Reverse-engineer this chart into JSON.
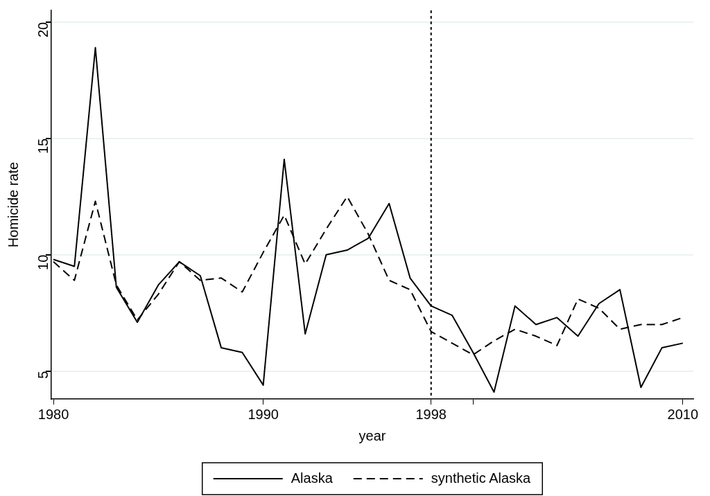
{
  "chart_data": {
    "type": "line",
    "xlabel": "year",
    "ylabel": "Homicide rate",
    "x": [
      1980,
      1981,
      1982,
      1983,
      1984,
      1985,
      1986,
      1987,
      1988,
      1989,
      1990,
      1991,
      1992,
      1993,
      1994,
      1995,
      1996,
      1997,
      1998,
      1999,
      2000,
      2001,
      2002,
      2003,
      2004,
      2005,
      2006,
      2007,
      2008,
      2009,
      2010
    ],
    "series": [
      {
        "name": "Alaska",
        "color": "#000000",
        "line_style": "solid",
        "values": [
          9.8,
          9.5,
          18.9,
          8.6,
          7.1,
          8.7,
          9.7,
          9.1,
          6.0,
          5.8,
          4.4,
          14.1,
          6.6,
          10.0,
          10.2,
          10.7,
          12.2,
          9.0,
          7.8,
          7.4,
          5.8,
          4.1,
          7.8,
          7.0,
          7.3,
          6.5,
          7.9,
          8.5,
          4.3,
          6.0,
          6.2
        ]
      },
      {
        "name": "synthetic Alaska",
        "color": "#000000",
        "line_style": "dashed",
        "values": [
          9.7,
          8.9,
          12.3,
          8.7,
          7.2,
          8.3,
          9.7,
          8.9,
          9.0,
          8.4,
          10.1,
          11.7,
          9.6,
          11.1,
          12.5,
          10.9,
          8.9,
          8.5,
          6.7,
          6.2,
          5.7,
          6.3,
          6.8,
          6.5,
          6.1,
          8.1,
          7.7,
          6.8,
          7.0,
          7.0,
          7.3
        ]
      }
    ],
    "xlim": [
      1979.9,
      2010.5
    ],
    "xticks": [
      1980,
      1990,
      1998,
      {
        "value": 2000,
        "label": null
      },
      2010
    ],
    "ylim": [
      3.8,
      20.5
    ],
    "yticks": [
      5,
      10,
      15,
      20
    ],
    "ref_lines": [
      {
        "axis": "x",
        "value": 1998,
        "line_style": "dotted",
        "color": "#000000"
      }
    ],
    "grid": "y",
    "legend": "bottom",
    "marker": "none"
  }
}
